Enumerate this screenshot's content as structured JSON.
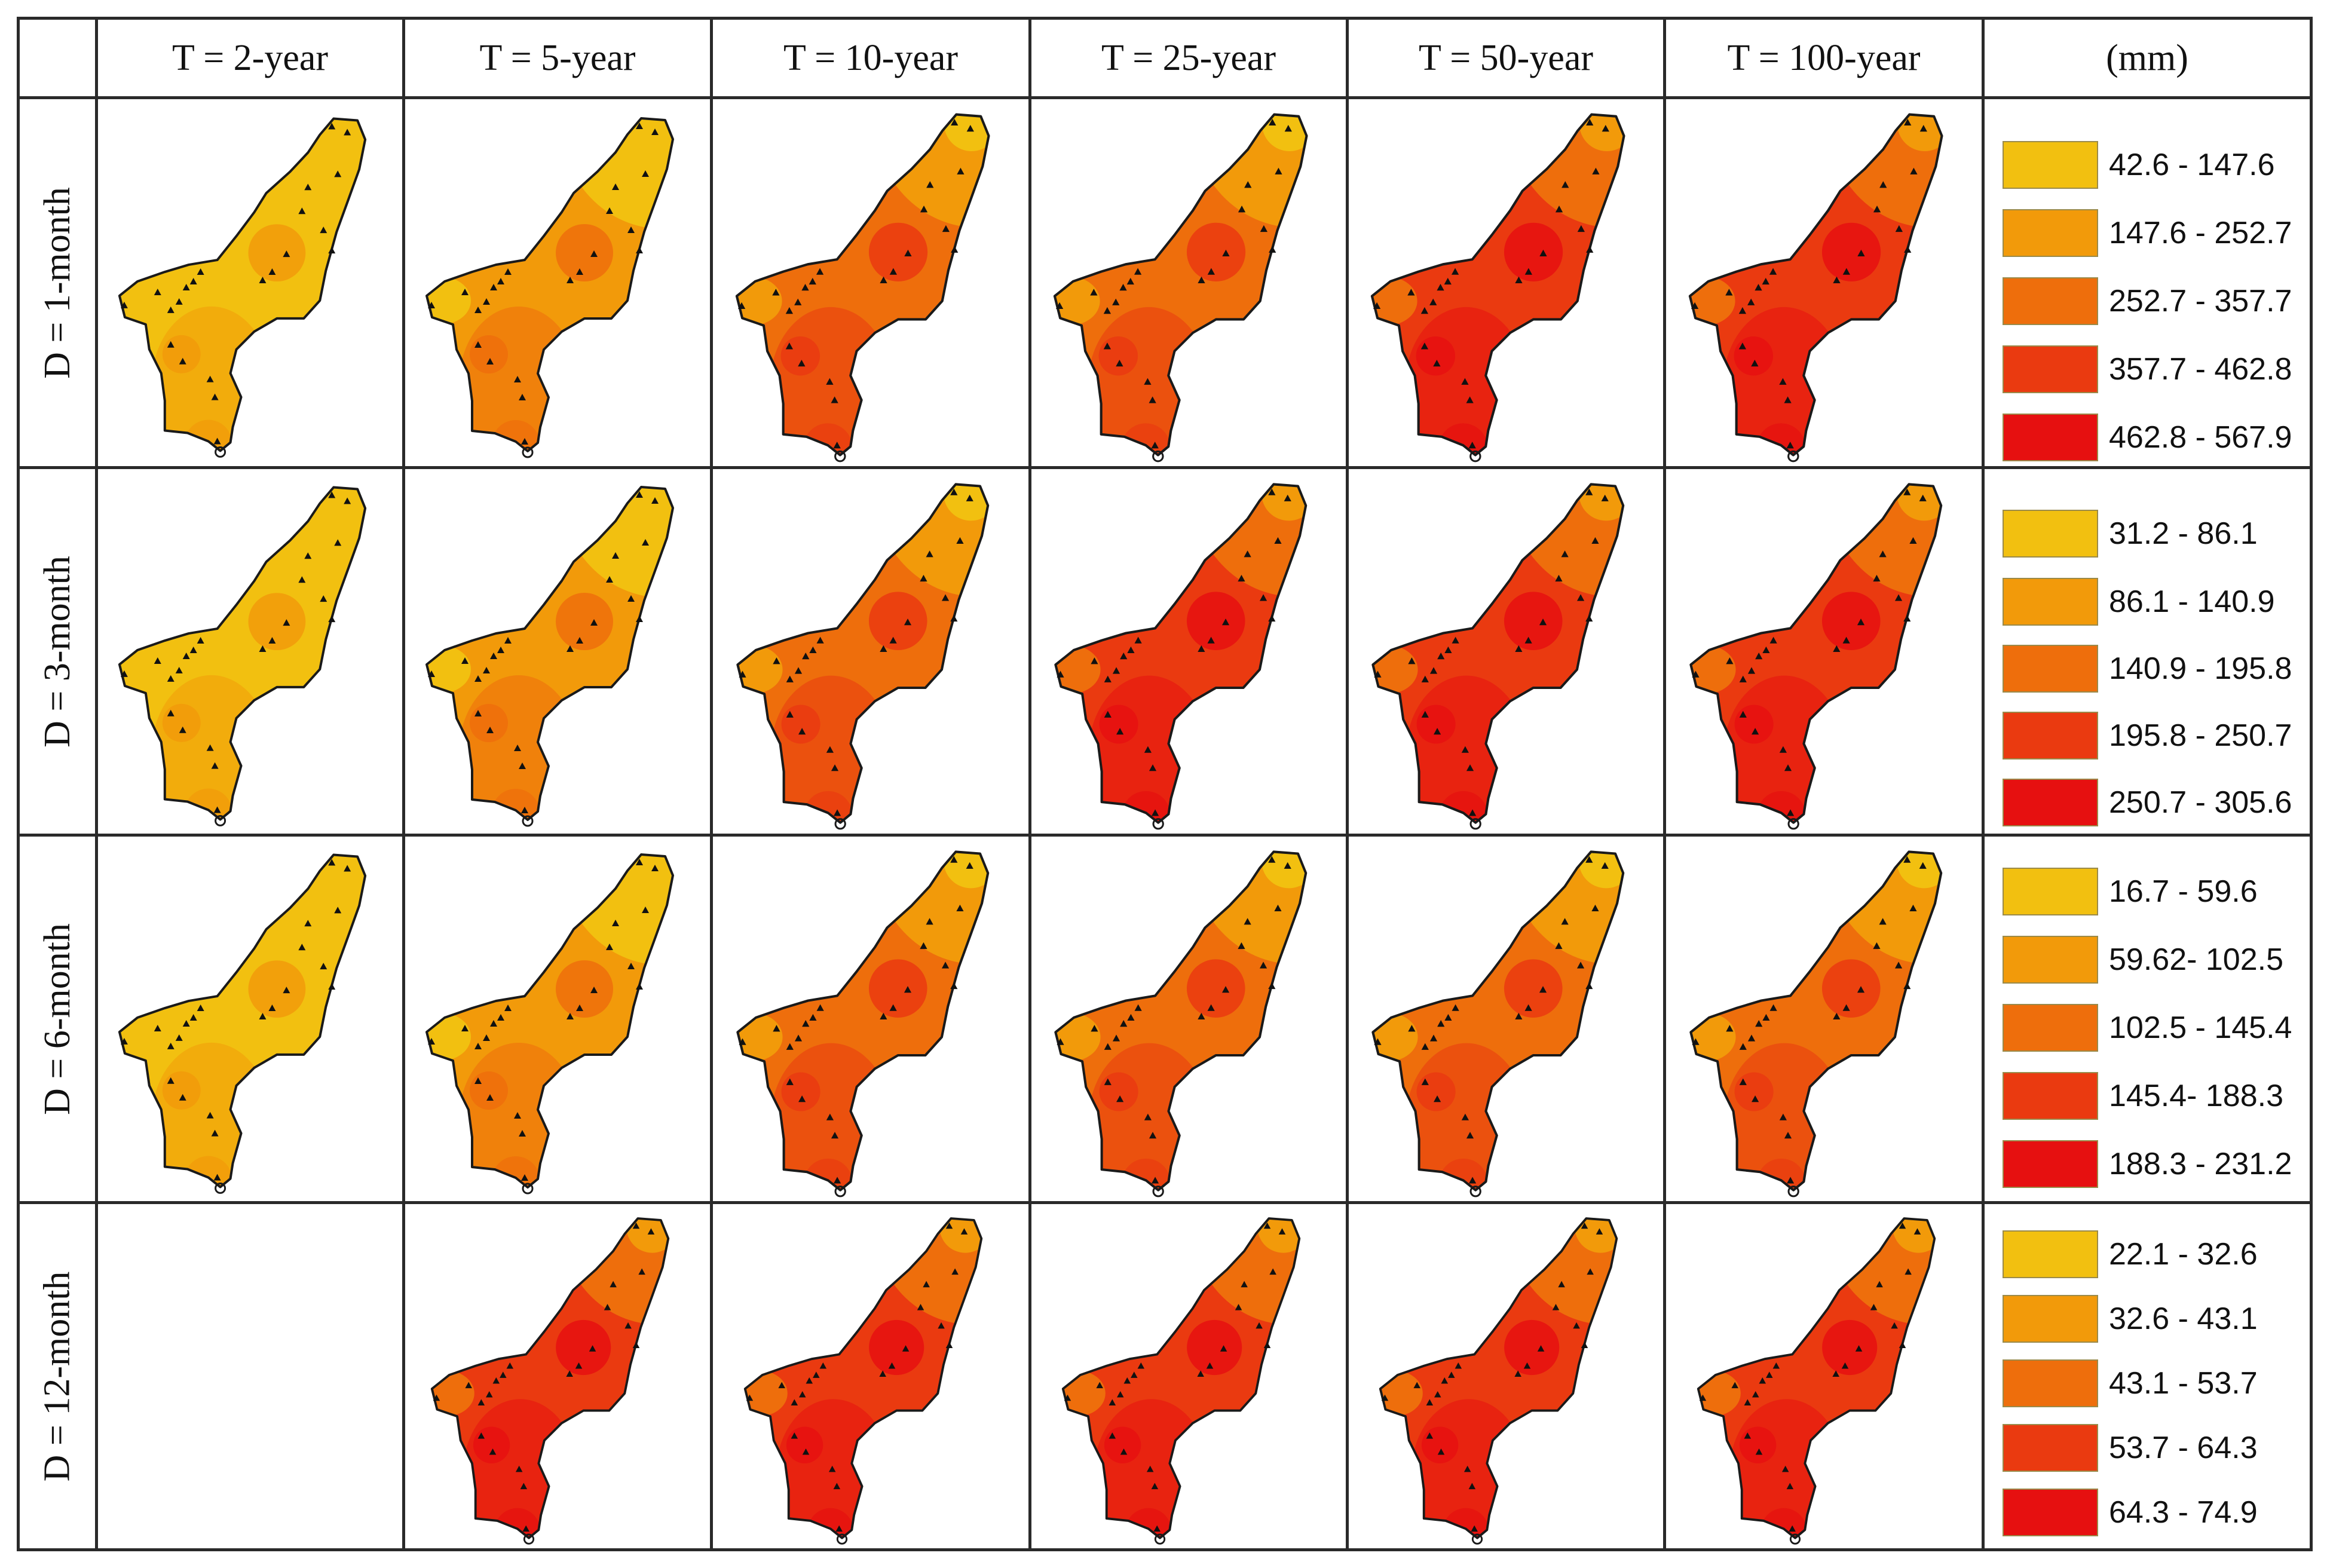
{
  "header": {
    "columns": [
      "T = 2-year",
      "T = 5-year",
      "T = 10-year",
      "T = 25-year",
      "T = 50-year",
      "T = 100-year"
    ],
    "units": "(mm)"
  },
  "rows": [
    {
      "label": "D = 1-month",
      "legend": [
        "42.6 - 147.6",
        "147.6 - 252.7",
        "252.7 - 357.7",
        "357.7 - 462.8",
        "462.8 - 567.9"
      ],
      "maps": [
        0,
        1,
        2,
        2,
        3,
        3
      ]
    },
    {
      "label": "D = 3-month",
      "legend": [
        "31.2 - 86.1",
        "86.1 - 140.9",
        "140.9 - 195.8",
        "195.8 - 250.7",
        "250.7 - 305.6"
      ],
      "maps": [
        0,
        1,
        2,
        3,
        3,
        3
      ]
    },
    {
      "label": "D = 6-month",
      "legend": [
        "16.7 - 59.6",
        "59.62- 102.5",
        "102.5 - 145.4",
        "145.4- 188.3",
        "188.3 - 231.2"
      ],
      "maps": [
        0,
        1,
        2,
        2,
        2,
        2
      ]
    },
    {
      "label": "D = 12-month",
      "legend": [
        "22.1 - 32.6",
        "32.6 - 43.1",
        "43.1 - 53.7",
        "53.7 - 64.3",
        "64.3 - 74.9"
      ],
      "maps": [
        null,
        3,
        3,
        3,
        3,
        3
      ]
    }
  ],
  "colors": {
    "classes": [
      "#f2c010",
      "#f29a0a",
      "#ee6e0c",
      "#ea3a10",
      "#e61010"
    ],
    "grid": "#2a2a2a",
    "station": "#111111"
  }
}
